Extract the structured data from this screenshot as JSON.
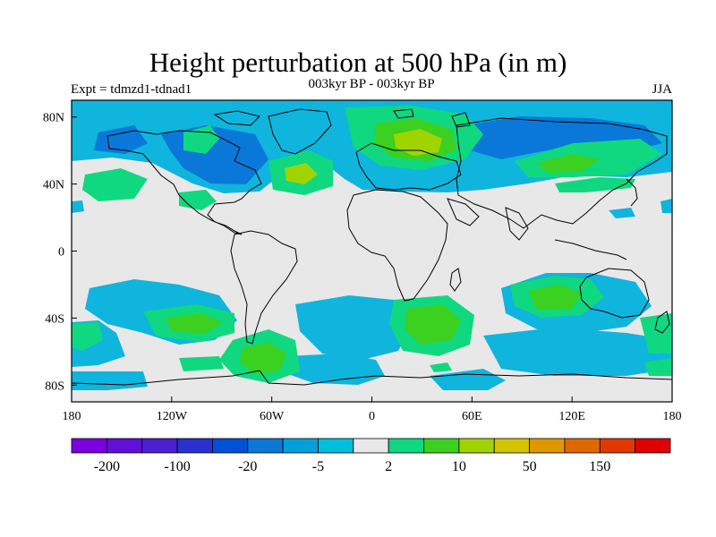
{
  "title": "Height perturbation at 500 hPa (in m)",
  "subtitle": "003kyr BP - 003kyr BP",
  "experiment_label": "Expt = tdmzd1-tdnad1",
  "season": "JJA",
  "map": {
    "projection": "cylindrical equidistant",
    "lon_range": [
      -180,
      180
    ],
    "lat_range": [
      -90,
      90
    ],
    "background_color": "#e8e8e8",
    "coastline_color": "#000000"
  },
  "axes": {
    "x_ticks": [
      {
        "value": -180,
        "label": "180"
      },
      {
        "value": -120,
        "label": "120W"
      },
      {
        "value": -60,
        "label": "60W"
      },
      {
        "value": 0,
        "label": "0"
      },
      {
        "value": 60,
        "label": "60E"
      },
      {
        "value": 120,
        "label": "120E"
      },
      {
        "value": 180,
        "label": "180"
      }
    ],
    "y_ticks": [
      {
        "value": 80,
        "label": "80N"
      },
      {
        "value": 40,
        "label": "40N"
      },
      {
        "value": 0,
        "label": "0"
      },
      {
        "value": -40,
        "label": "40S"
      },
      {
        "value": -80,
        "label": "80S"
      }
    ]
  },
  "colorbar": {
    "colors": [
      "#7a00e0",
      "#6010d8",
      "#4a20d0",
      "#2a30d0",
      "#0050d8",
      "#0a78d8",
      "#05a0dc",
      "#00bedc",
      "#e8e8e8",
      "#10d880",
      "#3cd020",
      "#a0d400",
      "#d4c400",
      "#e09800",
      "#e06800",
      "#e03800",
      "#e00000"
    ],
    "labels": [
      {
        "after_box": 1,
        "text": "-200"
      },
      {
        "after_box": 3,
        "text": "-100"
      },
      {
        "after_box": 5,
        "text": "-20"
      },
      {
        "after_box": 7,
        "text": "-5"
      },
      {
        "after_box": 9,
        "text": "2"
      },
      {
        "after_box": 11,
        "text": "10"
      },
      {
        "after_box": 13,
        "text": "50"
      },
      {
        "after_box": 15,
        "text": "150"
      }
    ]
  }
}
